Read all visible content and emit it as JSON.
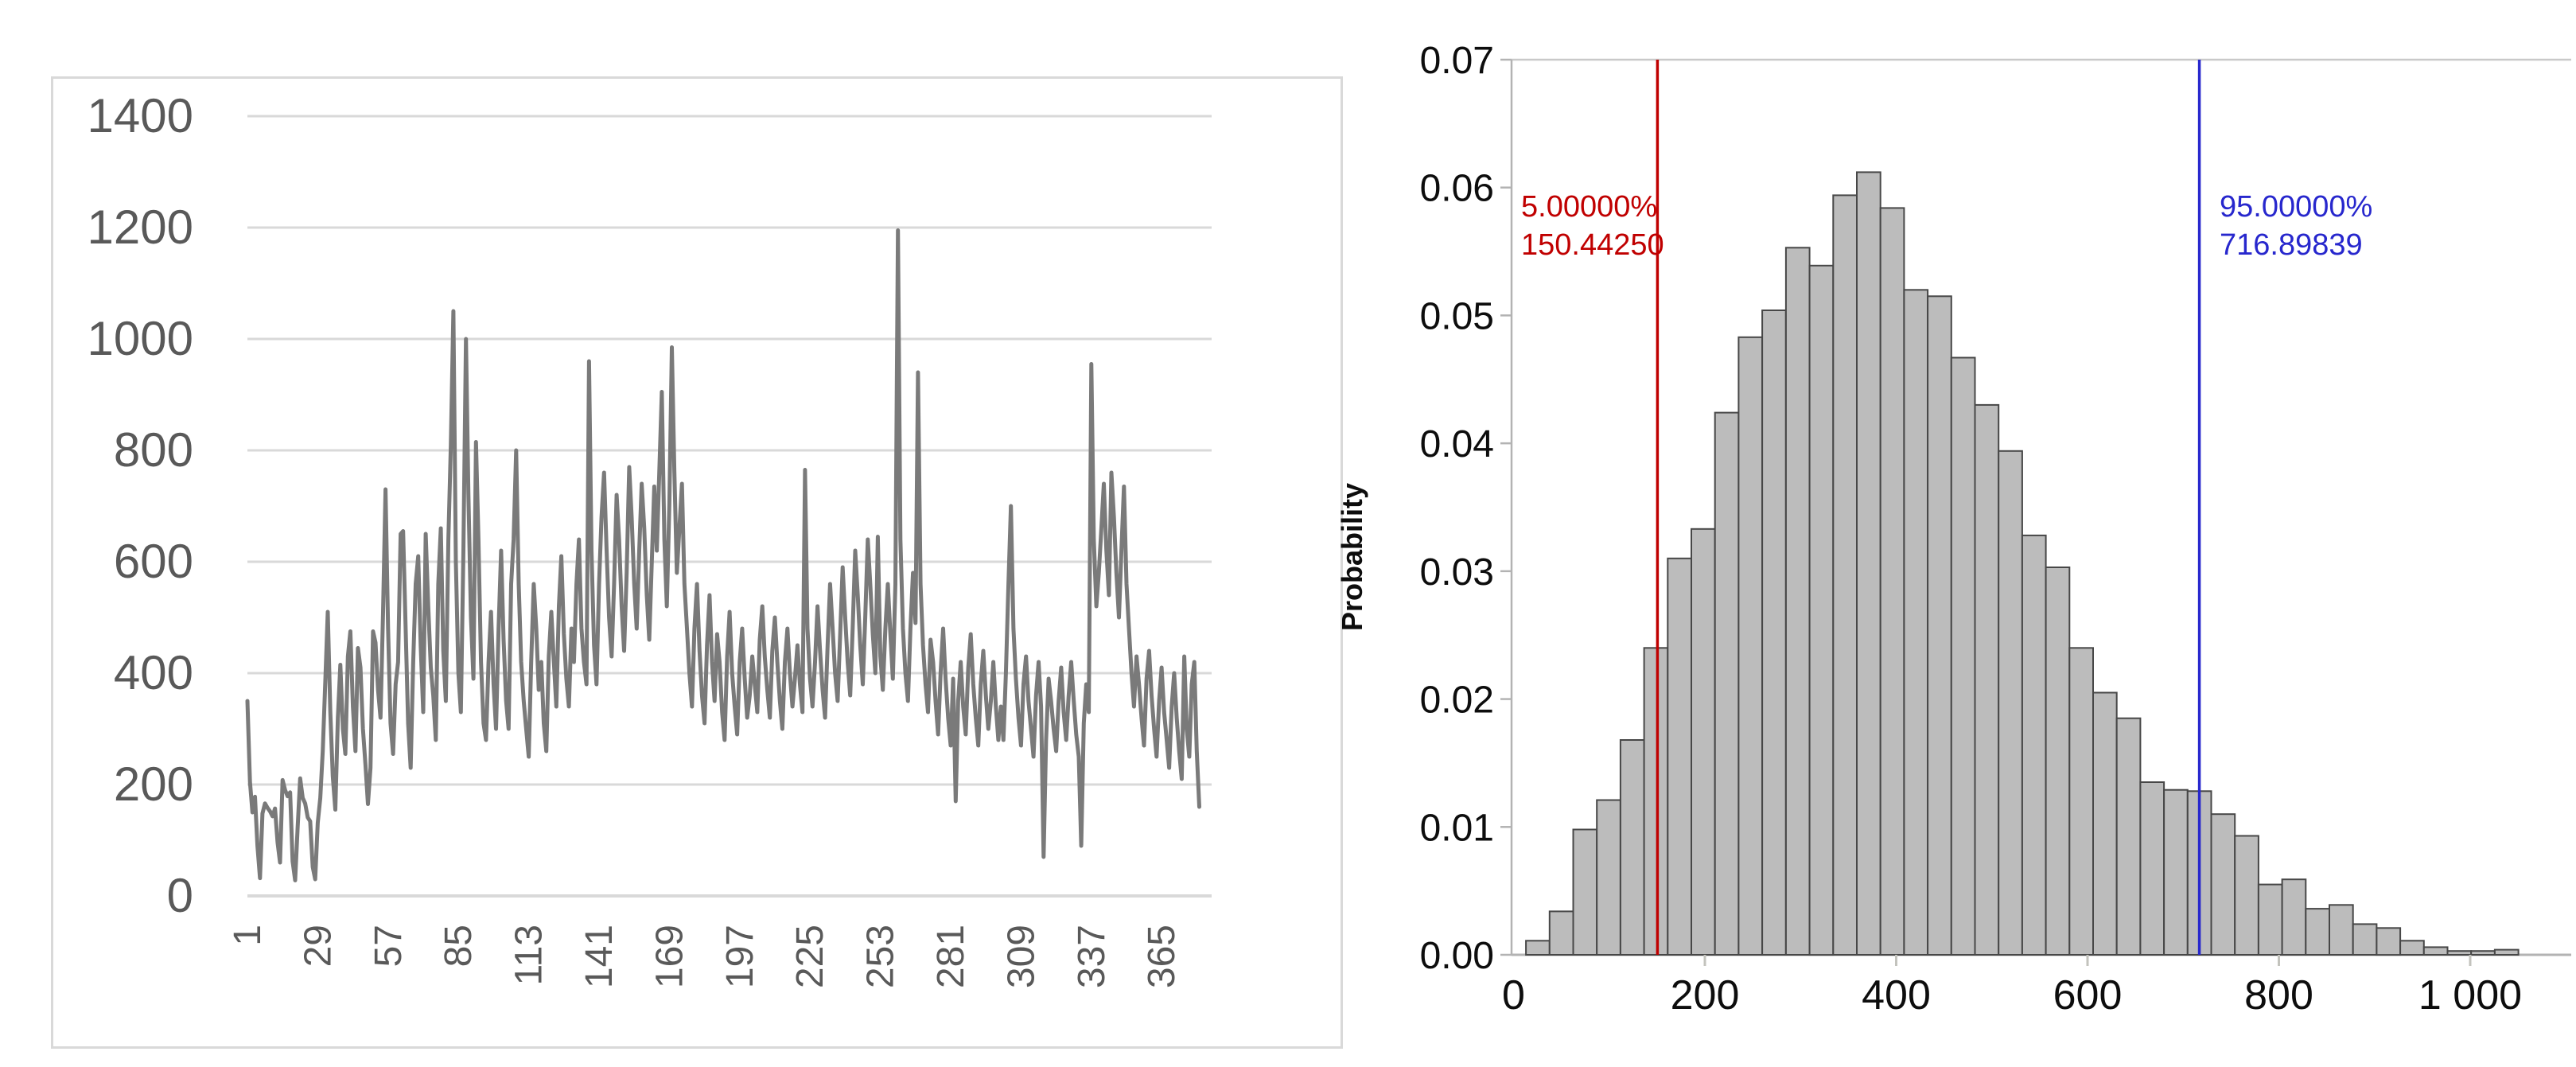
{
  "chart_data": [
    {
      "type": "line",
      "title": "",
      "xlabel": "",
      "ylabel": "",
      "x_start": 1,
      "x_tick_step": 28,
      "x_tick_labels": [
        "1",
        "29",
        "57",
        "85",
        "113",
        "141",
        "169",
        "197",
        "225",
        "253",
        "281",
        "309",
        "337",
        "365"
      ],
      "y_tick_labels": [
        "0",
        "200",
        "400",
        "600",
        "800",
        "1000",
        "1200",
        "1400"
      ],
      "y_tick_step": 200,
      "ylim": [
        0,
        1400
      ],
      "grid": true,
      "line_color": "#7a7a7a",
      "gridline_color": "#d9d9d9",
      "axis_label_color": "#595959",
      "frame_color": "#d9d9d9",
      "values": [
        350,
        205,
        150,
        178,
        90,
        32,
        148,
        166,
        158,
        152,
        143,
        157,
        96,
        60,
        208,
        190,
        179,
        186,
        62,
        28,
        122,
        211,
        176,
        166,
        141,
        134,
        52,
        30,
        131,
        176,
        260,
        385,
        510,
        330,
        215,
        155,
        320,
        415,
        300,
        255,
        430,
        475,
        340,
        260,
        445,
        410,
        300,
        235,
        165,
        230,
        475,
        455,
        370,
        320,
        510,
        730,
        480,
        310,
        255,
        380,
        420,
        650,
        655,
        480,
        310,
        230,
        420,
        560,
        610,
        450,
        330,
        650,
        520,
        410,
        360,
        280,
        560,
        660,
        440,
        350,
        640,
        810,
        1050,
        600,
        400,
        330,
        620,
        1000,
        720,
        500,
        390,
        815,
        640,
        420,
        310,
        280,
        420,
        510,
        380,
        300,
        480,
        620,
        460,
        350,
        300,
        560,
        640,
        800,
        560,
        420,
        350,
        300,
        250,
        420,
        560,
        480,
        370,
        420,
        310,
        260,
        430,
        510,
        420,
        340,
        520,
        610,
        470,
        390,
        340,
        480,
        420,
        560,
        640,
        480,
        420,
        380,
        960,
        620,
        450,
        380,
        560,
        680,
        760,
        620,
        500,
        430,
        560,
        720,
        640,
        520,
        440,
        580,
        770,
        680,
        560,
        480,
        620,
        740,
        660,
        540,
        460,
        600,
        735,
        620,
        760,
        905,
        640,
        520,
        705,
        985,
        760,
        580,
        660,
        740,
        560,
        480,
        400,
        340,
        480,
        560,
        440,
        360,
        310,
        450,
        540,
        420,
        350,
        470,
        420,
        330,
        280,
        430,
        510,
        400,
        340,
        290,
        420,
        480,
        390,
        320,
        360,
        430,
        380,
        330,
        460,
        520,
        430,
        370,
        320,
        440,
        500,
        420,
        350,
        300,
        420,
        480,
        400,
        340,
        390,
        450,
        380,
        330,
        765,
        480,
        390,
        340,
        420,
        520,
        440,
        370,
        320,
        450,
        560,
        480,
        400,
        350,
        470,
        590,
        500,
        420,
        360,
        480,
        620,
        540,
        450,
        380,
        500,
        640,
        560,
        470,
        400,
        645,
        430,
        370,
        480,
        560,
        470,
        390,
        560,
        1195,
        640,
        480,
        400,
        350,
        480,
        580,
        490,
        940,
        560,
        450,
        380,
        330,
        460,
        420,
        350,
        290,
        400,
        480,
        390,
        320,
        270,
        390,
        170,
        350,
        420,
        340,
        290,
        410,
        470,
        380,
        320,
        270,
        380,
        440,
        360,
        300,
        350,
        420,
        340,
        280,
        340,
        280,
        400,
        560,
        700,
        480,
        390,
        320,
        270,
        380,
        430,
        350,
        300,
        250,
        360,
        420,
        340,
        70,
        280,
        390,
        350,
        300,
        260,
        350,
        410,
        330,
        280,
        360,
        420,
        350,
        290,
        250,
        90,
        310,
        380,
        330,
        955,
        640,
        520,
        580,
        660,
        740,
        620,
        540,
        760,
        680,
        580,
        500,
        620,
        735,
        560,
        480,
        400,
        340,
        430,
        380,
        320,
        270,
        390,
        440,
        360,
        300,
        250,
        350,
        410,
        330,
        280,
        230,
        340,
        400,
        320,
        260,
        210,
        430,
        300,
        250,
        380,
        420,
        260,
        160
      ]
    },
    {
      "type": "histogram",
      "title": "",
      "xlabel": "",
      "ylabel": "Probability",
      "y_tick_labels": [
        "0.00",
        "0.01",
        "0.02",
        "0.03",
        "0.04",
        "0.05",
        "0.06",
        "0.07"
      ],
      "ylim": [
        0,
        0.07
      ],
      "x_tick_values": [
        0,
        200,
        400,
        600,
        800,
        1000
      ],
      "x_tick_labels": [
        "0",
        "200",
        "400",
        "600",
        "800",
        "1 000"
      ],
      "xlim": [
        0,
        1105
      ],
      "grid": false,
      "bin_start": 13,
      "bin_width": 24.7,
      "bin_values": [
        0.0011,
        0.0034,
        0.0098,
        0.0121,
        0.0168,
        0.024,
        0.031,
        0.0333,
        0.0424,
        0.0483,
        0.0504,
        0.0553,
        0.0539,
        0.0594,
        0.0612,
        0.0584,
        0.052,
        0.0515,
        0.0467,
        0.043,
        0.0394,
        0.0328,
        0.0303,
        0.024,
        0.0205,
        0.0185,
        0.0135,
        0.0129,
        0.0128,
        0.011,
        0.0093,
        0.0055,
        0.0059,
        0.0036,
        0.0039,
        0.0024,
        0.0021,
        0.0011,
        0.0006,
        0.0003,
        0.0003,
        0.0004
      ],
      "bar_fill": "#bcbcbc",
      "bar_border": "#474747",
      "axis_color": "#b3b3b3",
      "top_border_color": "#c9c9c9",
      "markers": [
        {
          "name": "percentile-5",
          "x": 150.4425,
          "color": "#c00000",
          "label_lines": [
            "5.00000%",
            "150.44250"
          ]
        },
        {
          "name": "percentile-95",
          "x": 716.89839,
          "color": "#2727cd",
          "label_lines": [
            "95.00000%",
            "716.89839"
          ]
        }
      ]
    }
  ]
}
